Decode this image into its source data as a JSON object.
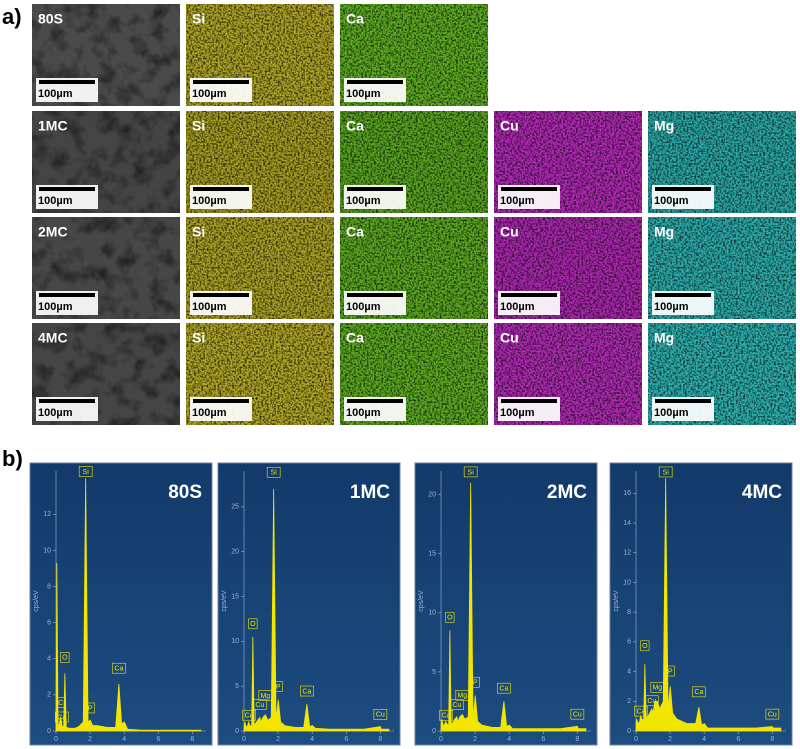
{
  "panel_a": {
    "label": "a)",
    "scale_bar": "100µm",
    "rows": [
      {
        "maps": [
          {
            "label": "80S",
            "color": "#4a4a4a"
          },
          {
            "label": "Si",
            "color": "#b0a626"
          },
          {
            "label": "Ca",
            "color": "#5fae22"
          }
        ]
      },
      {
        "maps": [
          {
            "label": "1MC",
            "color": "#444444"
          },
          {
            "label": "Si",
            "color": "#a89e22"
          },
          {
            "label": "Ca",
            "color": "#5aa620"
          },
          {
            "label": "Cu",
            "color": "#b22ab6"
          },
          {
            "label": "Mg",
            "color": "#2aaaa8"
          }
        ]
      },
      {
        "maps": [
          {
            "label": "2MC",
            "color": "#474747"
          },
          {
            "label": "Si",
            "color": "#aca224"
          },
          {
            "label": "Ca",
            "color": "#5caa21"
          },
          {
            "label": "Cu",
            "color": "#ac28b0"
          },
          {
            "label": "Mg",
            "color": "#2caeac"
          }
        ]
      },
      {
        "maps": [
          {
            "label": "4MC",
            "color": "#454545"
          },
          {
            "label": "Si",
            "color": "#b2a826"
          },
          {
            "label": "Ca",
            "color": "#5eac22"
          },
          {
            "label": "Cu",
            "color": "#b02cb4"
          },
          {
            "label": "Mg",
            "color": "#2eb2b0"
          }
        ]
      }
    ]
  },
  "panel_b": {
    "label": "b)",
    "y_axis_label": "cps/eV"
  },
  "chart_data": [
    {
      "type": "area",
      "title": "80S",
      "color": "#f2e600",
      "xlim": [
        0,
        8.8
      ],
      "xticks": [
        0,
        2,
        4,
        6,
        8
      ],
      "ylim": [
        0,
        14.4
      ],
      "yticks": [
        0,
        2,
        4,
        6,
        8,
        10,
        12
      ],
      "x": [
        0,
        0.05,
        0.12,
        0.2,
        0.27,
        0.35,
        0.45,
        0.52,
        0.6,
        0.8,
        0.93,
        1.0,
        1.1,
        1.25,
        1.4,
        1.6,
        1.74,
        1.88,
        2.01,
        2.15,
        2.4,
        3.0,
        3.5,
        3.69,
        3.85,
        4.01,
        4.2,
        5.0,
        6.0,
        7.0,
        8.0,
        8.05,
        8.5
      ],
      "values": [
        0.3,
        9.3,
        0.3,
        0.4,
        0.8,
        0.3,
        0.2,
        3.2,
        0.2,
        0.15,
        0.15,
        0.15,
        0.15,
        0.2,
        0.3,
        0.5,
        14,
        0.5,
        0.6,
        0.3,
        0.3,
        0.2,
        0.2,
        2.6,
        0.4,
        0.5,
        0.1,
        0.05,
        0.05,
        0.05,
        0.05,
        0.05,
        0.05
      ],
      "annotations": [
        {
          "text": "Ca",
          "x": 0.34,
          "y": 0.5
        },
        {
          "text": "C",
          "x": 0.27,
          "y": 1.3
        },
        {
          "text": "O",
          "x": 0.52,
          "y": 3.8
        },
        {
          "text": "Si",
          "x": 1.74,
          "y": 14.1
        },
        {
          "text": "P",
          "x": 2.01,
          "y": 1.0
        },
        {
          "text": "Ca",
          "x": 3.69,
          "y": 3.2
        }
      ]
    },
    {
      "type": "area",
      "title": "1MC",
      "color": "#f2e600",
      "xlim": [
        0,
        8.8
      ],
      "xticks": [
        0,
        2,
        4,
        6,
        8
      ],
      "ylim": [
        0,
        29
      ],
      "yticks": [
        0,
        5,
        10,
        15,
        20,
        25
      ],
      "x": [
        0,
        0.05,
        0.12,
        0.2,
        0.27,
        0.35,
        0.45,
        0.52,
        0.6,
        0.8,
        0.93,
        1.0,
        1.1,
        1.25,
        1.4,
        1.6,
        1.74,
        1.88,
        2.01,
        2.15,
        2.4,
        3.0,
        3.5,
        3.69,
        3.85,
        4.01,
        4.2,
        5.0,
        6.0,
        7.0,
        8.0,
        8.05,
        8.5
      ],
      "values": [
        0.5,
        1,
        0.5,
        0.5,
        1,
        0.6,
        0.5,
        10.5,
        0.6,
        1.2,
        1.5,
        1,
        1.5,
        1.8,
        1.2,
        1.5,
        27,
        1.2,
        3.5,
        1,
        0.6,
        0.4,
        0.4,
        3,
        0.5,
        0.6,
        0.3,
        0.2,
        0.2,
        0.2,
        0.5,
        0.2,
        0.2
      ],
      "annotations": [
        {
          "text": "Ca",
          "x": 0.3,
          "y": 1.2
        },
        {
          "text": "O",
          "x": 0.52,
          "y": 11.4
        },
        {
          "text": "Cu",
          "x": 0.93,
          "y": 2.4
        },
        {
          "text": "Mg",
          "x": 1.25,
          "y": 3.4
        },
        {
          "text": "Si",
          "x": 1.74,
          "y": 28.3
        },
        {
          "text": "P",
          "x": 2.01,
          "y": 4.4
        },
        {
          "text": "Ca",
          "x": 3.69,
          "y": 3.9
        },
        {
          "text": "Cu",
          "x": 8.0,
          "y": 1.3
        }
      ]
    },
    {
      "type": "area",
      "title": "2MC",
      "color": "#f2e600",
      "xlim": [
        0,
        8.8
      ],
      "xticks": [
        0,
        2,
        4,
        6,
        8
      ],
      "ylim": [
        0,
        22
      ],
      "yticks": [
        0,
        5,
        10,
        15,
        20
      ],
      "x": [
        0,
        0.05,
        0.12,
        0.2,
        0.27,
        0.35,
        0.45,
        0.52,
        0.6,
        0.8,
        0.93,
        1.0,
        1.1,
        1.25,
        1.4,
        1.6,
        1.74,
        1.88,
        2.01,
        2.15,
        2.4,
        3.0,
        3.5,
        3.69,
        3.85,
        4.01,
        4.2,
        5.0,
        6.0,
        7.0,
        8.0,
        8.05,
        8.5
      ],
      "values": [
        0.5,
        1,
        0.5,
        0.5,
        0.8,
        0.6,
        0.5,
        8.5,
        0.5,
        1,
        1.2,
        0.8,
        1.2,
        1.4,
        1,
        1.2,
        21,
        1,
        3,
        0.8,
        0.5,
        0.3,
        0.3,
        2.5,
        0.4,
        0.5,
        0.2,
        0.2,
        0.2,
        0.2,
        0.4,
        0.2,
        0.2
      ],
      "annotations": [
        {
          "text": "Ca",
          "x": 0.3,
          "y": 0.9
        },
        {
          "text": "O",
          "x": 0.52,
          "y": 9.2
        },
        {
          "text": "Cu",
          "x": 0.93,
          "y": 1.8
        },
        {
          "text": "Mg",
          "x": 1.25,
          "y": 2.6
        },
        {
          "text": "Si",
          "x": 1.74,
          "y": 21.5
        },
        {
          "text": "P",
          "x": 2.01,
          "y": 3.7
        },
        {
          "text": "Ca",
          "x": 3.69,
          "y": 3.2
        },
        {
          "text": "Cu",
          "x": 8.0,
          "y": 1.0
        }
      ]
    },
    {
      "type": "area",
      "title": "4MC",
      "color": "#f2e600",
      "xlim": [
        0,
        8.8
      ],
      "xticks": [
        0,
        2,
        4,
        6,
        8
      ],
      "ylim": [
        0,
        17.5
      ],
      "yticks": [
        0,
        2,
        4,
        6,
        8,
        10,
        12,
        14,
        16
      ],
      "x": [
        0,
        0.05,
        0.12,
        0.2,
        0.27,
        0.35,
        0.45,
        0.52,
        0.6,
        0.8,
        0.93,
        1.0,
        1.1,
        1.25,
        1.4,
        1.6,
        1.74,
        1.88,
        2.01,
        2.15,
        2.4,
        3.0,
        3.5,
        3.69,
        3.85,
        4.01,
        4.2,
        5.0,
        6.0,
        7.0,
        8.0,
        8.05,
        8.5
      ],
      "values": [
        0.5,
        0.8,
        0.5,
        0.6,
        1,
        0.8,
        0.7,
        4.5,
        0.8,
        1.2,
        1.5,
        1.2,
        2,
        2,
        1.5,
        2,
        17,
        1.5,
        3,
        1.2,
        0.8,
        0.5,
        0.5,
        1.6,
        0.4,
        0.5,
        0.2,
        0.2,
        0.2,
        0.2,
        0.3,
        0.2,
        0.2
      ],
      "annotations": [
        {
          "text": "Ca",
          "x": 0.3,
          "y": 1.0
        },
        {
          "text": "O",
          "x": 0.52,
          "y": 5.4
        },
        {
          "text": "Cu",
          "x": 0.93,
          "y": 1.7
        },
        {
          "text": "Mg",
          "x": 1.25,
          "y": 2.6
        },
        {
          "text": "Si",
          "x": 1.74,
          "y": 17.1
        },
        {
          "text": "P",
          "x": 2.01,
          "y": 3.7
        },
        {
          "text": "Ca",
          "x": 3.69,
          "y": 2.3
        },
        {
          "text": "Cu",
          "x": 8.0,
          "y": 0.8
        }
      ]
    }
  ]
}
